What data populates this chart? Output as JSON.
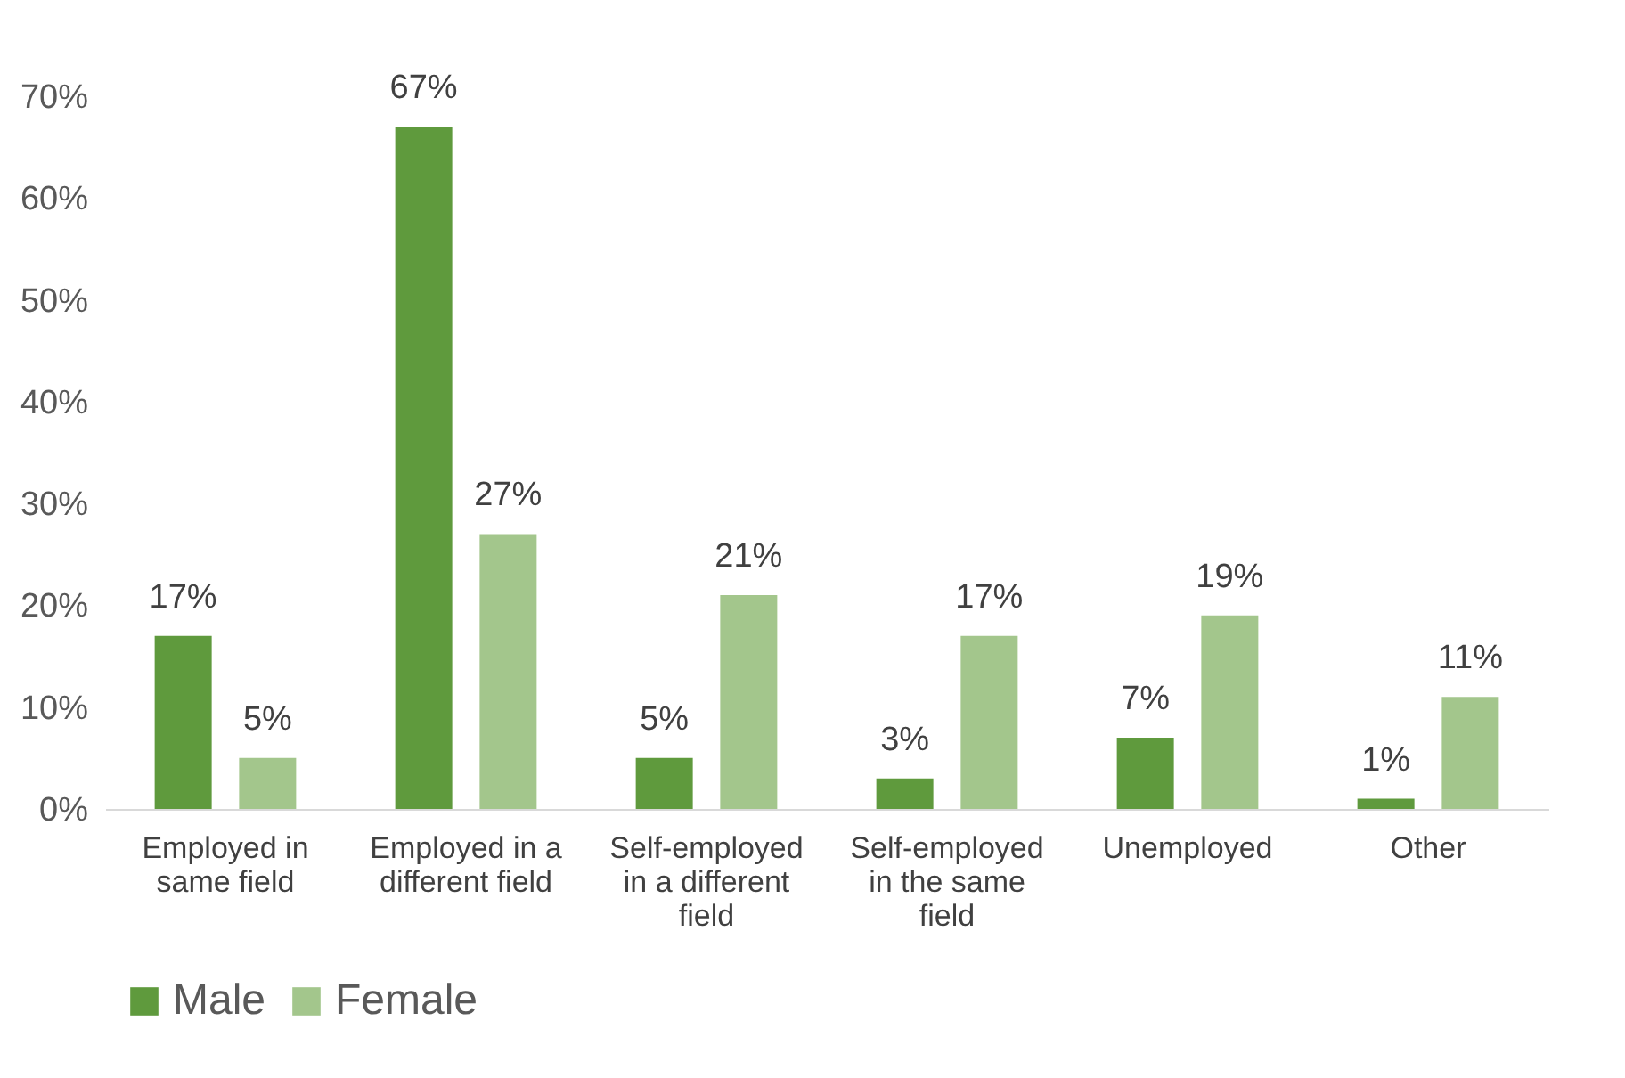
{
  "chart_data": {
    "type": "bar",
    "categories": [
      "Employed in same field",
      "Employed in a different field",
      "Self-employed in a different field",
      "Self-employed in the same field",
      "Unemployed",
      "Other"
    ],
    "series": [
      {
        "name": "Male",
        "color": "#5f9a3d",
        "values": [
          17,
          67,
          5,
          3,
          7,
          1
        ],
        "value_labels": [
          "17%",
          "67%",
          "5%",
          "3%",
          "7%",
          "1%"
        ]
      },
      {
        "name": "Female",
        "color": "#a3c68c",
        "values": [
          5,
          27,
          21,
          17,
          19,
          11
        ],
        "value_labels": [
          "5%",
          "27%",
          "21%",
          "17%",
          "19%",
          "11%"
        ]
      }
    ],
    "ylim": [
      0,
      70
    ],
    "yticks": [
      {
        "value": 0,
        "label": "0%"
      },
      {
        "value": 10,
        "label": "10%"
      },
      {
        "value": 20,
        "label": "20%"
      },
      {
        "value": 30,
        "label": "30%"
      },
      {
        "value": 40,
        "label": "40%"
      },
      {
        "value": 50,
        "label": "50%"
      },
      {
        "value": 60,
        "label": "60%"
      },
      {
        "value": 70,
        "label": "70%"
      }
    ],
    "grid": false,
    "legend": "bottom"
  }
}
